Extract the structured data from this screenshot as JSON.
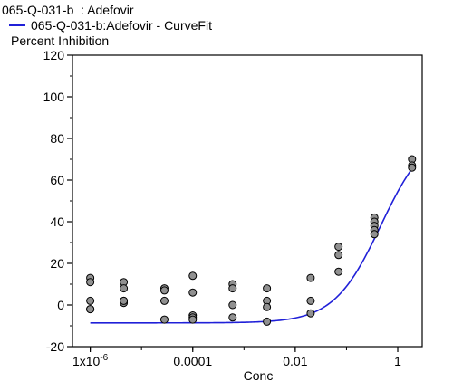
{
  "chart_data": {
    "type": "scatter",
    "title": "065-Q-031-b  : Adefovir",
    "ylabel": "Percent Inhibition",
    "xlabel": "Conc",
    "x_scale": "log",
    "xlim": [
      4.5e-07,
      3
    ],
    "ylim": [
      -20,
      120
    ],
    "x_ticks": [
      {
        "value": 1e-06,
        "base": "1x10",
        "exp": "-6"
      },
      {
        "value": 0.0001,
        "label": "0.0001"
      },
      {
        "value": 0.01,
        "label": "0.01"
      },
      {
        "value": 1,
        "label": "1"
      }
    ],
    "y_ticks": [
      -20,
      0,
      20,
      40,
      60,
      80,
      100,
      120
    ],
    "grid": false,
    "legend_position": "top-left",
    "series": [
      {
        "type": "scatter",
        "color": "#909090",
        "x": [
          1e-06,
          1e-06,
          1e-06,
          1e-06,
          1e-06,
          4.5e-06,
          4.5e-06,
          4.5e-06,
          4.5e-06,
          4.5e-06,
          2.8e-05,
          2.8e-05,
          2.8e-05,
          2.8e-05,
          0.0001,
          0.0001,
          0.0001,
          0.0001,
          0.0001,
          0.0006,
          0.0006,
          0.0006,
          0.0006,
          0.0028,
          0.0028,
          0.0028,
          0.0028,
          0.02,
          0.02,
          0.02,
          0.07,
          0.07,
          0.07,
          0.35,
          0.35,
          0.35,
          0.35,
          0.35,
          1.9,
          1.9,
          1.9
        ],
        "y": [
          13,
          11,
          2,
          -2,
          -2,
          11,
          8,
          2,
          1,
          2,
          8,
          7,
          2,
          -7,
          14,
          6,
          -5,
          -6,
          -7,
          10,
          8,
          0,
          -6,
          8,
          2,
          -1,
          -8,
          13,
          2,
          -4,
          28,
          24,
          16,
          42,
          40,
          38,
          36,
          34,
          70,
          67,
          66
        ]
      },
      {
        "type": "line",
        "name": "065-Q-031-b:Adefovir - CurveFit",
        "color": "#2020d8",
        "fit": {
          "bottom": -8.6,
          "top": 85,
          "log_ec50": -0.33,
          "hill": 0.95
        }
      }
    ]
  }
}
